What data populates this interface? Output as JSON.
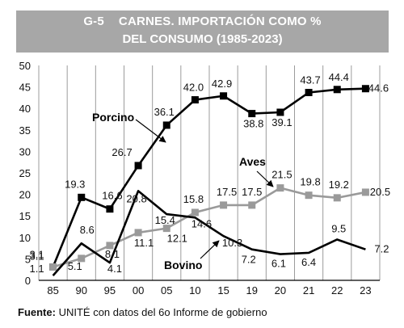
{
  "header": {
    "code": "G-5",
    "title_line1": "CARNES. IMPORTACIÓN COMO %",
    "title_line2": "DEL CONSUMO (1985-2023)"
  },
  "footer": {
    "label": "Fuente:",
    "text": "UNITÉ con datos del 6o Informe de gobierno"
  },
  "chart_data": {
    "type": "line",
    "title": "CARNES. IMPORTACIÓN COMO % DEL CONSUMO (1985-2023)",
    "categories": [
      "85",
      "90",
      "95",
      "00",
      "05",
      "10",
      "15",
      "19",
      "20",
      "21",
      "22",
      "23"
    ],
    "ylim": [
      0,
      50
    ],
    "yticks": [
      0,
      5,
      10,
      15,
      20,
      25,
      30,
      35,
      40,
      45,
      50
    ],
    "grid": "vertical",
    "series": [
      {
        "name": "Porcino",
        "color": "#000000",
        "marker": "square",
        "values": [
          3.1,
          19.3,
          16.6,
          26.7,
          36.1,
          42.0,
          42.9,
          38.8,
          39.1,
          43.7,
          44.4,
          44.6
        ],
        "labels": [
          "3.1",
          "19.3",
          "16.6",
          "26.7",
          "36.1",
          "42.0",
          "42.9",
          "38.8",
          "39.1",
          "43.7",
          "44.4",
          "44.6"
        ]
      },
      {
        "name": "Aves",
        "color": "#9a9a9a",
        "marker": "square",
        "values": [
          3.1,
          5.1,
          8.1,
          11.1,
          12.1,
          15.8,
          17.5,
          17.5,
          21.5,
          19.8,
          19.2,
          20.5
        ],
        "labels": [
          "3.1",
          "5.1",
          "8.1",
          "11.1",
          "12.1",
          "15.8",
          "17.5",
          "17.5",
          "21.5",
          "19.8",
          "19.2",
          "20.5"
        ]
      },
      {
        "name": "Bovino",
        "color": "#000000",
        "marker": "none",
        "values": [
          1.1,
          8.6,
          4.1,
          20.8,
          15.4,
          14.6,
          10.3,
          7.2,
          6.1,
          6.4,
          9.5,
          7.2
        ],
        "labels": [
          "1.1",
          "8.6",
          "4.1",
          "20.8",
          "15.4",
          "14.6",
          "10.3",
          "7.2",
          "6.1",
          "6.4",
          "9.5",
          "7.2"
        ]
      }
    ],
    "annotations": [
      "Porcino",
      "Aves",
      "Bovino"
    ]
  }
}
